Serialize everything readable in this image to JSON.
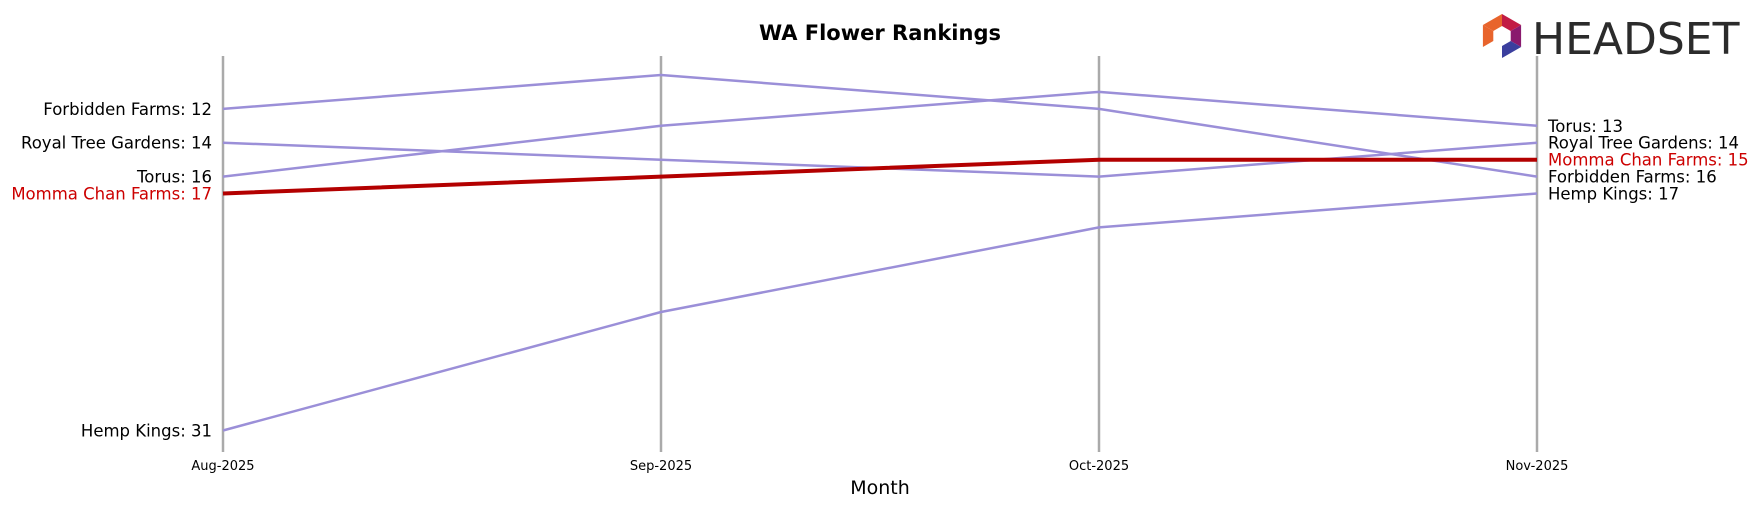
{
  "chart_data": {
    "type": "line",
    "title": "WA Flower Rankings",
    "xlabel": "Month",
    "ylabel": "",
    "y_inverted": true,
    "ylim": [
      11,
      32
    ],
    "categories": [
      "Aug-2025",
      "Sep-2025",
      "Oct-2025",
      "Nov-2025"
    ],
    "series": [
      {
        "name": "Forbidden Farms",
        "values": [
          12,
          10,
          12,
          16
        ],
        "color": "#9b8fd8",
        "highlight": false
      },
      {
        "name": "Royal Tree Gardens",
        "values": [
          14,
          15,
          16,
          14
        ],
        "color": "#9b8fd8",
        "highlight": false
      },
      {
        "name": "Torus",
        "values": [
          16,
          13,
          11,
          13
        ],
        "color": "#9b8fd8",
        "highlight": false
      },
      {
        "name": "Hemp Kings",
        "values": [
          31,
          24,
          19,
          17
        ],
        "color": "#9b8fd8",
        "highlight": false
      },
      {
        "name": "Momma Chan Farms",
        "values": [
          17,
          16,
          15,
          15
        ],
        "color": "#b30000",
        "highlight": true
      }
    ],
    "grid": "vertical",
    "vline_color": "#aaaaaa",
    "label_colors": {
      "normal": "#000000",
      "highlight": "#cc0000"
    }
  },
  "logo": {
    "text": "HEADSET",
    "icon": "headset-hexagon-icon",
    "colors": [
      "#e8642c",
      "#c21b44",
      "#8a1a6e",
      "#3b3f9e"
    ]
  }
}
